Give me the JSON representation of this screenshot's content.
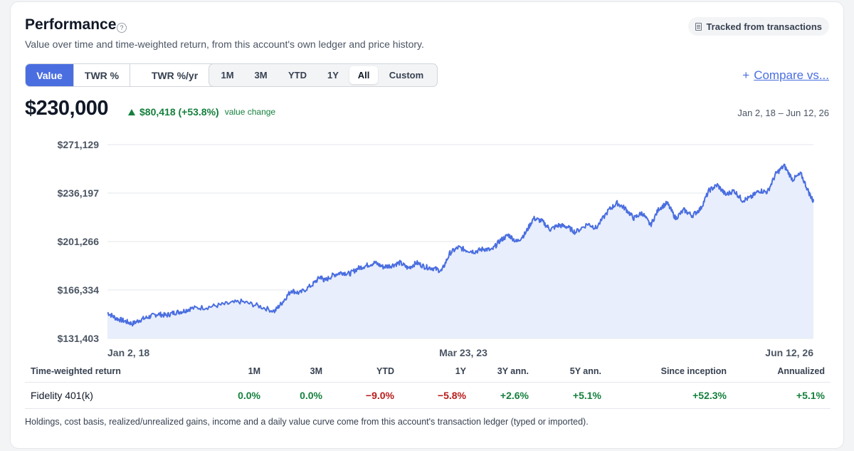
{
  "header": {
    "title": "Performance",
    "subtitle": "Value over time and time-weighted return, from this account's own ledger and price history.",
    "badge": "Tracked from transactions"
  },
  "controls": {
    "mode_tabs": [
      {
        "label": "Value",
        "active": true
      },
      {
        "label": "TWR %",
        "active": false
      },
      {
        "label": "TWR %/yr",
        "active": false
      }
    ],
    "range_tabs": [
      {
        "label": "1M",
        "active": false
      },
      {
        "label": "3M",
        "active": false
      },
      {
        "label": "YTD",
        "active": false
      },
      {
        "label": "1Y",
        "active": false
      },
      {
        "label": "All",
        "active": true
      },
      {
        "label": "Custom",
        "active": false
      }
    ],
    "compare_icon": "+",
    "compare_label": "Compare vs..."
  },
  "summary": {
    "value": "$230,000",
    "change": "$80,418 (+53.8%)",
    "change_label": "value change",
    "date_range": "Jan 2, 18 – Jun 12, 26"
  },
  "colors": {
    "accent": "#4a6ee0",
    "line": "#4a6ee0",
    "area": "#e8eefb",
    "positive": "#15803d",
    "negative": "#b91c1c"
  },
  "chart_data": {
    "type": "area",
    "y_tick_labels": [
      "$271,129",
      "$236,197",
      "$201,266",
      "$166,334",
      "$131,403"
    ],
    "ylim": [
      131403,
      271129
    ],
    "x_tick_labels": [
      "Jan 2, 18",
      "Mar 23, 23",
      "Jun 12, 26"
    ],
    "xlim": [
      2018.0,
      2026.45
    ],
    "grid": true,
    "series": [
      {
        "x": [
          2018.0,
          2018.1,
          2018.2,
          2018.3,
          2018.4,
          2018.5,
          2018.6,
          2018.7,
          2018.8,
          2018.9,
          2019.0,
          2019.2,
          2019.4,
          2019.6,
          2019.8,
          2020.0,
          2020.1,
          2020.2,
          2020.3,
          2020.45,
          2020.55,
          2020.6,
          2020.7,
          2020.8,
          2020.9,
          2021.0,
          2021.1,
          2021.2,
          2021.3,
          2021.4,
          2021.5,
          2021.6,
          2021.7,
          2021.8,
          2021.9,
          2022.0,
          2022.1,
          2022.2,
          2022.3,
          2022.4,
          2022.5,
          2022.6,
          2022.7,
          2022.8,
          2022.9,
          2023.0,
          2023.1,
          2023.2,
          2023.3,
          2023.4,
          2023.5,
          2023.6,
          2023.75,
          2023.85,
          2024.0,
          2024.1,
          2024.2,
          2024.3,
          2024.4,
          2024.5,
          2024.6,
          2024.7,
          2024.8,
          2024.9,
          2025.0,
          2025.1,
          2025.2,
          2025.3,
          2025.4,
          2025.5,
          2025.6,
          2025.7,
          2025.8,
          2025.9,
          2026.0,
          2026.1,
          2026.2,
          2026.3,
          2026.4,
          2026.45
        ],
        "values": [
          150000,
          146000,
          144000,
          142000,
          145000,
          147000,
          149000,
          148000,
          150000,
          151000,
          153000,
          154000,
          156000,
          158000,
          155000,
          151000,
          158000,
          166000,
          164000,
          170000,
          176000,
          173000,
          177000,
          179000,
          178000,
          182000,
          184000,
          186000,
          183000,
          184000,
          186000,
          182000,
          186000,
          183000,
          182000,
          180000,
          193000,
          197000,
          195000,
          194000,
          196000,
          195000,
          202000,
          206000,
          201000,
          207000,
          218000,
          216000,
          210000,
          213000,
          212000,
          208000,
          214000,
          211000,
          224000,
          229000,
          225000,
          218000,
          222000,
          213000,
          225000,
          229000,
          218000,
          224000,
          220000,
          225000,
          238000,
          242000,
          235000,
          238000,
          231000,
          233000,
          238000,
          237000,
          250000,
          256000,
          246000,
          250000,
          236000,
          230000
        ]
      }
    ]
  },
  "twr_table": {
    "headers": [
      "Time-weighted return",
      "1M",
      "3M",
      "YTD",
      "1Y",
      "3Y ann.",
      "5Y ann.",
      "Since inception",
      "Annualized"
    ],
    "rows": [
      {
        "name": "Fidelity 401(k)",
        "values": [
          "0.0%",
          "0.0%",
          "−9.0%",
          "−5.8%",
          "+2.6%",
          "+5.1%",
          "+52.3%",
          "+5.1%"
        ],
        "signs": [
          "pos",
          "pos",
          "neg",
          "neg",
          "pos",
          "pos",
          "pos",
          "pos"
        ]
      }
    ]
  },
  "footnote": "Holdings, cost basis, realized/unrealized gains, income and a daily value curve come from this account's transaction ledger (typed or imported)."
}
